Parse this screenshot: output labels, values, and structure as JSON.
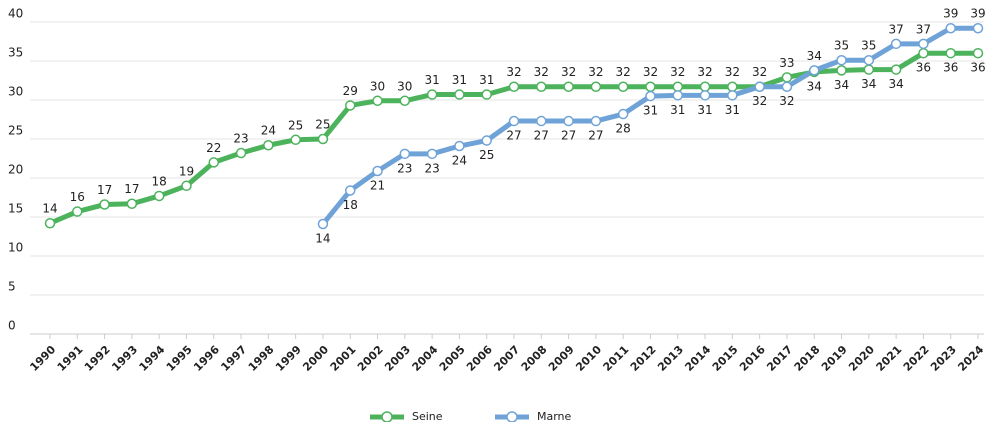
{
  "chart_data": {
    "type": "line",
    "categories": [
      "1990",
      "1991",
      "1992",
      "1993",
      "1994",
      "1995",
      "1996",
      "1997",
      "1998",
      "1999",
      "2000",
      "2001",
      "2002",
      "2003",
      "2004",
      "2005",
      "2006",
      "2007",
      "2008",
      "2009",
      "2010",
      "2011",
      "2012",
      "2013",
      "2014",
      "2015",
      "2016",
      "2017",
      "2018",
      "2019",
      "2020",
      "2021",
      "2022",
      "2023",
      "2024"
    ],
    "series": [
      {
        "name": "Seine",
        "color": "#4cb35c",
        "values": [
          14.2,
          15.7,
          16.6,
          16.7,
          17.7,
          19,
          22,
          23.2,
          24.2,
          24.9,
          25,
          29.3,
          29.9,
          29.9,
          30.7,
          30.7,
          30.7,
          31.7,
          31.7,
          31.7,
          31.7,
          31.7,
          31.7,
          31.7,
          31.7,
          31.7,
          31.7,
          32.9,
          33.6,
          33.8,
          33.9,
          33.9,
          36,
          36,
          36
        ],
        "value_labels": [
          "14",
          "16",
          "17",
          "17",
          "18",
          "19",
          "22",
          "23",
          "24",
          "25",
          "25",
          "29",
          "30",
          "30",
          "31",
          "31",
          "31",
          "32",
          "32",
          "32",
          "32",
          "32",
          "32",
          "32",
          "32",
          "32",
          "32",
          "33",
          "34",
          "34",
          "34",
          "34",
          "36",
          "36",
          "36"
        ]
      },
      {
        "name": "Marne",
        "color": "#6fa3d8",
        "values": [
          null,
          null,
          null,
          null,
          null,
          null,
          null,
          null,
          null,
          null,
          14.1,
          18.4,
          20.9,
          23.1,
          23.1,
          24.1,
          24.8,
          27.3,
          27.3,
          27.3,
          27.3,
          28.2,
          30.5,
          30.6,
          30.6,
          30.6,
          31.7,
          31.7,
          33.8,
          35.1,
          35.1,
          37.2,
          37.2,
          39.2,
          39.2
        ],
        "value_labels": [
          null,
          null,
          null,
          null,
          null,
          null,
          null,
          null,
          null,
          null,
          "14",
          "18",
          "21",
          "23",
          "23",
          "24",
          "25",
          "27",
          "27",
          "27",
          "27",
          "28",
          "31",
          "31",
          "31",
          "31",
          "32",
          "32",
          "34",
          "35",
          "35",
          "37",
          "37",
          "39",
          "39"
        ]
      }
    ],
    "ylim": [
      0,
      40
    ],
    "yticks": [
      0,
      5,
      10,
      15,
      20,
      25,
      30,
      35,
      40
    ],
    "grid": true,
    "legend": "bottom"
  }
}
